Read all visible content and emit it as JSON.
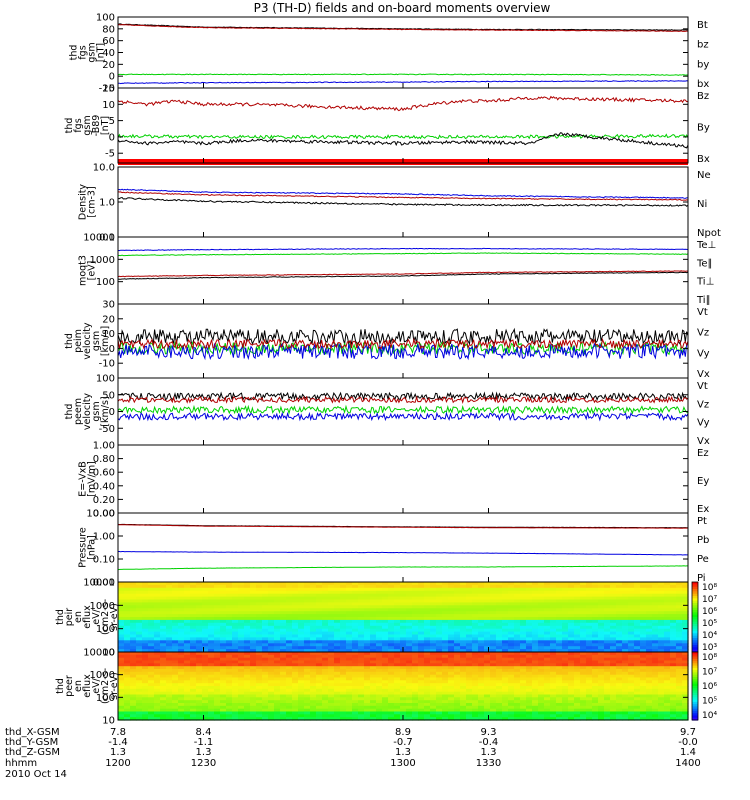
{
  "chart_data": {
    "title": "P3 (TH-D) fields and on-board moments overview",
    "type": "line",
    "colors": {
      "black": "#000000",
      "red": "#b00000",
      "green": "#00d000",
      "blue": "#0000e0",
      "bar": "#ff0000"
    },
    "panels": [
      {
        "ylabel": [
          "thd",
          "fgs",
          "gsm",
          "[nT]"
        ],
        "ylim": [
          -20,
          100
        ],
        "scale": "linear",
        "yticks": [
          100,
          80,
          60,
          40,
          20,
          0,
          -20
        ],
        "ytick_labels": [
          "100",
          "80",
          "60",
          "40",
          "20",
          "0",
          "-20"
        ],
        "legend": [
          {
            "label": "Bt",
            "color": "black"
          },
          {
            "label": "bz",
            "color": "red"
          },
          {
            "label": "by",
            "color": "green"
          },
          {
            "label": "bx",
            "color": "blue"
          }
        ],
        "series": [
          {
            "color": "black",
            "x": [
              1200,
              1230,
              1300,
              1330,
              1400
            ],
            "y": [
              88,
              83,
              80,
              79,
              78
            ],
            "noise": 0.5
          },
          {
            "color": "red",
            "x": [
              1200,
              1230,
              1300,
              1330,
              1400
            ],
            "y": [
              87,
              82,
              79,
              78,
              76
            ],
            "noise": 0.5
          },
          {
            "color": "green",
            "x": [
              1200,
              1230,
              1300,
              1330,
              1400
            ],
            "y": [
              3,
              3,
              3,
              3,
              2
            ],
            "noise": 0.6
          },
          {
            "color": "blue",
            "x": [
              1200,
              1230,
              1300,
              1330,
              1400
            ],
            "y": [
              -12,
              -11,
              -10,
              -9,
              -8
            ],
            "noise": 0.6
          }
        ]
      },
      {
        "ylabel": [
          "thd",
          "fgs",
          "gsm",
          "-B89",
          "[nT]"
        ],
        "ylim": [
          -8,
          15
        ],
        "scale": "linear",
        "yticks": [
          15,
          10,
          5,
          0,
          -5
        ],
        "ytick_labels": [
          "15",
          "10",
          "5",
          "0",
          "-5"
        ],
        "legend": [
          {
            "label": "Bz",
            "color": "red"
          },
          {
            "label": "By",
            "color": "green"
          },
          {
            "label": "Bx",
            "color": "black"
          }
        ],
        "series": [
          {
            "color": "red",
            "x": [
              1200,
              1210,
              1220,
              1230,
              1245,
              1300,
              1310,
              1320,
              1330,
              1345,
              1400
            ],
            "y": [
              11,
              10,
              11,
              10,
              10,
              8.5,
              10,
              11,
              11,
              12,
              11
            ],
            "noise": 0.5
          },
          {
            "color": "green",
            "x": [
              1200,
              1230,
              1300,
              1330,
              1400
            ],
            "y": [
              0.3,
              0,
              0,
              0,
              0.3
            ],
            "noise": 0.5
          },
          {
            "color": "black",
            "x": [
              1200,
              1210,
              1220,
              1230,
              1245,
              1300,
              1320,
              1345,
              1355,
              1400
            ],
            "y": [
              -1,
              -2,
              -1.5,
              -2,
              -1,
              -2,
              -1.5,
              -2,
              1,
              -3
            ],
            "noise": 0.5
          }
        ],
        "bar_color": "bar"
      },
      {
        "ylabel": [
          "Density",
          "[cm-3]"
        ],
        "ylim": [
          0.1,
          10
        ],
        "scale": "log",
        "yticks": [
          10,
          1,
          0.1
        ],
        "ytick_labels": [
          "10.0",
          "1.0",
          "0.1"
        ],
        "legend": [
          {
            "label": "Ne",
            "color": "red"
          },
          {
            "label": "Ni",
            "color": "black"
          },
          {
            "label": "Npot",
            "color": "blue"
          }
        ],
        "series": [
          {
            "color": "blue",
            "x": [
              1200,
              1230,
              1300,
              1330,
              1400
            ],
            "y": [
              2.3,
              1.9,
              1.7,
              1.5,
              1.3
            ],
            "noise": 0.03
          },
          {
            "color": "red",
            "x": [
              1200,
              1230,
              1300,
              1330,
              1400
            ],
            "y": [
              1.9,
              1.6,
              1.35,
              1.25,
              1.15
            ],
            "noise": 0.03
          },
          {
            "color": "black",
            "x": [
              1200,
              1230,
              1300,
              1330,
              1400
            ],
            "y": [
              1.3,
              1.05,
              0.85,
              0.82,
              0.8
            ],
            "noise": 0.05
          }
        ]
      },
      {
        "ylabel": [
          "moqt3",
          "[eV]"
        ],
        "ylim": [
          10,
          10000
        ],
        "scale": "log",
        "yticks": [
          10000,
          1000,
          100
        ],
        "ytick_labels": [
          "10000",
          "1000",
          "100"
        ],
        "legend": [
          {
            "label": "Te⊥",
            "color": "red"
          },
          {
            "label": "Te∥",
            "color": "black"
          },
          {
            "label": "Ti⊥",
            "color": "green"
          },
          {
            "label": "Ti∥",
            "color": "green"
          }
        ],
        "series": [
          {
            "color": "blue",
            "x": [
              1200,
              1230,
              1300,
              1330,
              1400
            ],
            "y": [
              2500,
              2700,
              3000,
              3000,
              2800
            ],
            "noise": 0.03
          },
          {
            "color": "green",
            "x": [
              1200,
              1230,
              1300,
              1330,
              1400
            ],
            "y": [
              1500,
              1600,
              1800,
              1900,
              1700
            ],
            "noise": 0.03
          },
          {
            "color": "red",
            "x": [
              1200,
              1230,
              1300,
              1330,
              1400
            ],
            "y": [
              170,
              190,
              220,
              260,
              300
            ],
            "noise": 0.03
          },
          {
            "color": "black",
            "x": [
              1200,
              1230,
              1300,
              1330,
              1400
            ],
            "y": [
              130,
              150,
              180,
              220,
              260
            ],
            "noise": 0.03
          }
        ]
      },
      {
        "ylabel": [
          "thd",
          "peim",
          "velocity",
          "gsm",
          "[km/s]"
        ],
        "ylim": [
          -20,
          30
        ],
        "scale": "linear",
        "yticks": [
          30,
          20,
          10,
          0,
          -10
        ],
        "ytick_labels": [
          "30",
          "20",
          "10",
          "0",
          "-10"
        ],
        "legend": [
          {
            "label": "Vt",
            "color": "black"
          },
          {
            "label": "Vz",
            "color": "red"
          },
          {
            "label": "Vy",
            "color": "green"
          },
          {
            "label": "Vx",
            "color": "blue"
          }
        ],
        "series": [
          {
            "color": "black",
            "x": [
              1200,
              1400
            ],
            "y": [
              8,
              8
            ],
            "noise": 5
          },
          {
            "color": "green",
            "x": [
              1200,
              1400
            ],
            "y": [
              0,
              0
            ],
            "noise": 4
          },
          {
            "color": "blue",
            "x": [
              1200,
              1400
            ],
            "y": [
              -2,
              -2
            ],
            "noise": 5
          },
          {
            "color": "red",
            "x": [
              1200,
              1400
            ],
            "y": [
              3,
              3
            ],
            "noise": 3
          }
        ]
      },
      {
        "ylabel": [
          "thd",
          "peem",
          "velocity",
          "gsm",
          "[km/s]"
        ],
        "ylim": [
          -100,
          100
        ],
        "scale": "linear",
        "yticks": [
          100,
          50,
          0,
          -50
        ],
        "ytick_labels": [
          "100",
          "50",
          "0",
          "-50"
        ],
        "legend": [
          {
            "label": "Vt",
            "color": "black"
          },
          {
            "label": "Vz",
            "color": "red"
          },
          {
            "label": "Vy",
            "color": "green"
          },
          {
            "label": "Vx",
            "color": "blue"
          }
        ],
        "series": [
          {
            "color": "black",
            "x": [
              1200,
              1400
            ],
            "y": [
              45,
              45
            ],
            "noise": 10
          },
          {
            "color": "red",
            "x": [
              1200,
              1400
            ],
            "y": [
              35,
              35
            ],
            "noise": 8
          },
          {
            "color": "green",
            "x": [
              1200,
              1400
            ],
            "y": [
              5,
              5
            ],
            "noise": 10
          },
          {
            "color": "blue",
            "x": [
              1200,
              1400
            ],
            "y": [
              -15,
              -15
            ],
            "noise": 10
          }
        ]
      },
      {
        "ylabel": [
          "E=-VxB",
          "[mV/m]"
        ],
        "ylim": [
          0,
          1
        ],
        "scale": "linear",
        "yticks": [
          1,
          0.8,
          0.6,
          0.4,
          0.2,
          0
        ],
        "ytick_labels": [
          "1.00",
          "0.80",
          "0.60",
          "0.40",
          "0.20",
          "0.00"
        ],
        "legend": [
          {
            "label": "Ez",
            "color": "red"
          },
          {
            "label": "Ey",
            "color": "green"
          },
          {
            "label": "Ex",
            "color": "blue"
          }
        ],
        "series": []
      },
      {
        "ylabel": [
          "Pressure",
          "[nPa]"
        ],
        "ylim": [
          0.01,
          10
        ],
        "scale": "log",
        "yticks": [
          10,
          1,
          0.1,
          0.01
        ],
        "ytick_labels": [
          "10.00",
          "1.00",
          "0.10",
          "0.01"
        ],
        "legend": [
          {
            "label": "Pt",
            "color": "black"
          },
          {
            "label": "Pb",
            "color": "red"
          },
          {
            "label": "Pe",
            "color": "green"
          },
          {
            "label": "Pi",
            "color": "blue"
          }
        ],
        "series": [
          {
            "color": "black",
            "x": [
              1200,
              1230,
              1300,
              1330,
              1400
            ],
            "y": [
              3.2,
              2.8,
              2.5,
              2.4,
              2.3
            ],
            "noise": 0.01
          },
          {
            "color": "red",
            "x": [
              1200,
              1230,
              1300,
              1330,
              1400
            ],
            "y": [
              3.1,
              2.7,
              2.4,
              2.3,
              2.2
            ],
            "noise": 0.01
          },
          {
            "color": "blue",
            "x": [
              1200,
              1230,
              1300,
              1330,
              1400
            ],
            "y": [
              0.21,
              0.2,
              0.19,
              0.18,
              0.15
            ],
            "noise": 0.01
          },
          {
            "color": "green",
            "x": [
              1200,
              1230,
              1300,
              1330,
              1400
            ],
            "y": [
              0.035,
              0.04,
              0.045,
              0.045,
              0.05
            ],
            "noise": 0.01
          }
        ]
      },
      {
        "ylabel": [
          "thd",
          "peir",
          "en",
          "eflux",
          "eV/",
          "(cm2-s-",
          "sr-eV)"
        ],
        "type": "spectrogram",
        "ylim": [
          10,
          10000
        ],
        "scale": "log",
        "yticks": [
          10000,
          1000,
          100,
          10
        ],
        "ytick_labels": [
          "10000",
          "1000",
          "100",
          "10"
        ],
        "colorbar": {
          "min_exp": 3,
          "max_exp": 8,
          "labels": [
            "10⁸",
            "10⁷",
            "10⁶",
            "10⁵",
            "10⁴",
            "10³"
          ]
        }
      },
      {
        "ylabel": [
          "thd",
          "peer",
          "en",
          "eflux",
          "eV/",
          "(cm2-s-",
          "sr-eV)"
        ],
        "type": "spectrogram",
        "ylim": [
          10,
          10000
        ],
        "scale": "log",
        "yticks": [
          10000,
          1000,
          100,
          10
        ],
        "ytick_labels": [
          "10000",
          "1000",
          "100",
          "10"
        ],
        "colorbar": {
          "min_exp": 4,
          "max_exp": 8,
          "labels": [
            "10⁸",
            "10⁷",
            "10⁶",
            "10⁵",
            "10⁴"
          ]
        }
      }
    ],
    "xaxis": {
      "xlim": [
        1200,
        1400
      ],
      "rows": [
        {
          "label": "thd_X-GSM",
          "values": [
            "7.8",
            "8.4",
            "8.9",
            "9.3",
            "9.7"
          ]
        },
        {
          "label": "thd_Y-GSM",
          "values": [
            "-1.4",
            "-1.1",
            "-0.7",
            "-0.4",
            "-0.0"
          ]
        },
        {
          "label": "thd_Z-GSM",
          "values": [
            "1.3",
            "1.3",
            "1.3",
            "1.3",
            "1.4"
          ]
        },
        {
          "label": "hhmm",
          "values": [
            "1200",
            "1230",
            "1300",
            "1330",
            "1400"
          ]
        }
      ],
      "tick_times": [
        1200,
        1230,
        1300,
        1330,
        1400
      ],
      "date": "2010 Oct 14"
    }
  }
}
